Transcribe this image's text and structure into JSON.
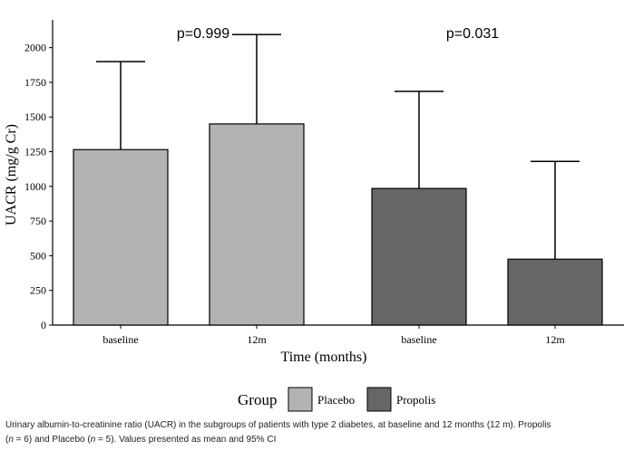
{
  "chart_data": {
    "type": "bar",
    "ylabel": "UACR (mg/g Cr)",
    "xlabel": "Time (months)",
    "ylim": [
      0,
      2200
    ],
    "yticks": [
      "0",
      "250",
      "500",
      "750",
      "1000",
      "1250",
      "1500",
      "1750",
      "2000"
    ],
    "ytick_values": [
      0,
      250,
      500,
      750,
      1000,
      1250,
      1500,
      1750,
      2000
    ],
    "legend": {
      "title": "Group",
      "placement": "bottom",
      "entries": [
        {
          "name": "Placebo",
          "color": "#b3b3b3"
        },
        {
          "name": "Propolis",
          "color": "#666666"
        }
      ]
    },
    "bars": [
      {
        "category": "baseline",
        "group": "Placebo",
        "value": 1265,
        "error_upper": 1900
      },
      {
        "category": "12m",
        "group": "Placebo",
        "value": 1450,
        "error_upper": 2095
      },
      {
        "category": "baseline",
        "group": "Propolis",
        "value": 985,
        "error_upper": 1685
      },
      {
        "category": "12m",
        "group": "Propolis",
        "value": 475,
        "error_upper": 1180
      }
    ],
    "annotations": [
      {
        "text": "p=0.999",
        "group": "Placebo"
      },
      {
        "text": "p=0.031",
        "group": "Propolis"
      }
    ],
    "grid": false
  },
  "caption": {
    "line1": "Urinary albumin-to-creatinine ratio (UACR) in the subgroups of patients with type 2 diabetes, at baseline and 12 months (12 m). Propolis",
    "line2_pre": "(",
    "line2_n1": "n",
    "line2_mid1": " = 6) and Placebo (",
    "line2_n2": "n",
    "line2_rest": " = 5). Values presented as mean and 95% CI"
  }
}
